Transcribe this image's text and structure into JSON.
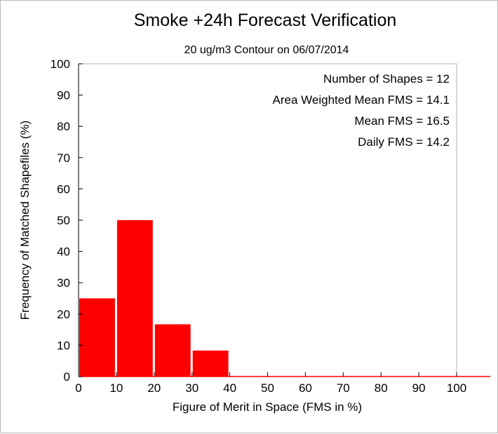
{
  "chart_data": {
    "type": "bar",
    "title": "Smoke +24h Forecast Verification",
    "subtitle": "20 ug/m3 Contour on 06/07/2014",
    "xlabel": "Figure of Merit in Space (FMS in %)",
    "ylabel": "Frequency of Matched Shapefiles (%)",
    "xlim": [
      0,
      100
    ],
    "ylim": [
      0,
      100
    ],
    "x_ticks": [
      "0",
      "10",
      "20",
      "30",
      "40",
      "50",
      "60",
      "70",
      "80",
      "90",
      "100"
    ],
    "y_ticks": [
      "0",
      "10",
      "20",
      "30",
      "40",
      "50",
      "60",
      "70",
      "80",
      "90",
      "100"
    ],
    "bins": [
      [
        0,
        10
      ],
      [
        10,
        20
      ],
      [
        20,
        30
      ],
      [
        30,
        40
      ],
      [
        40,
        50
      ],
      [
        50,
        60
      ],
      [
        60,
        70
      ],
      [
        70,
        80
      ],
      [
        80,
        90
      ],
      [
        90,
        100
      ]
    ],
    "values": [
      25,
      50,
      16.7,
      8.3,
      0,
      0,
      0,
      0,
      0,
      0
    ],
    "bar_color": "#ff0000",
    "grid": false,
    "annotations": [
      "Number of Shapes = 12",
      "Area Weighted Mean FMS = 14.1",
      "Mean FMS = 16.5",
      "Daily FMS = 14.2"
    ]
  }
}
